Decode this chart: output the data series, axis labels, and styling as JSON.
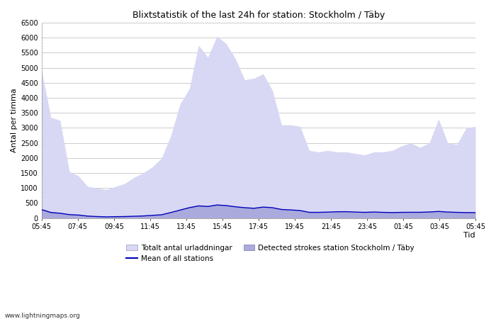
{
  "title": "Blixtstatistik of the last 24h for station: Stockholm / Täby",
  "xlabel": "Tid",
  "ylabel": "Antal per timma",
  "watermark": "www.lightningmaps.org",
  "legend1": "Totalt antal urladdningar",
  "legend2": "Mean of all stations",
  "legend3": "Detected strokes station Stockholm / Täby",
  "xtick_labels": [
    "05:45",
    "07:45",
    "09:45",
    "11:45",
    "13:45",
    "15:45",
    "17:45",
    "19:45",
    "21:45",
    "23:45",
    "01:45",
    "03:45",
    "05:45"
  ],
  "ylim": [
    0,
    6500
  ],
  "yticks": [
    0,
    500,
    1000,
    1500,
    2000,
    2500,
    3000,
    3500,
    4000,
    4500,
    5000,
    5500,
    6000,
    6500
  ],
  "fill_total_color": "#d8d8f5",
  "fill_strokes_color": "#aaaadd",
  "line_color": "#0000bb",
  "bg_color": "#ffffff",
  "grid_color": "#cccccc",
  "total_urladdningar": [
    4900,
    3350,
    3250,
    1550,
    1400,
    1050,
    1000,
    950,
    1050,
    1150,
    1350,
    1500,
    1700,
    2000,
    2750,
    3800,
    4300,
    5750,
    5350,
    6050,
    5800,
    5300,
    4600,
    4650,
    4800,
    4250,
    3100,
    3100,
    3050,
    2250,
    2200,
    2250,
    2200,
    2200,
    2150,
    2100,
    2200,
    2200,
    2250,
    2400,
    2500,
    2350,
    2500,
    3300,
    2500,
    2450,
    3000,
    3050
  ],
  "detected_strokes": [
    310,
    220,
    180,
    130,
    110,
    75,
    55,
    50,
    50,
    55,
    65,
    80,
    95,
    120,
    200,
    290,
    370,
    430,
    405,
    460,
    435,
    390,
    355,
    340,
    380,
    355,
    305,
    280,
    265,
    200,
    195,
    205,
    215,
    220,
    205,
    195,
    205,
    200,
    190,
    200,
    200,
    200,
    210,
    235,
    205,
    200,
    190,
    195
  ],
  "mean_stations": [
    280,
    185,
    160,
    115,
    100,
    65,
    50,
    40,
    45,
    50,
    60,
    70,
    90,
    110,
    185,
    265,
    345,
    405,
    385,
    435,
    415,
    375,
    345,
    325,
    365,
    345,
    285,
    270,
    250,
    190,
    190,
    198,
    210,
    212,
    200,
    190,
    200,
    190,
    183,
    190,
    192,
    192,
    202,
    220,
    200,
    190,
    182,
    182
  ],
  "n_points": 48
}
